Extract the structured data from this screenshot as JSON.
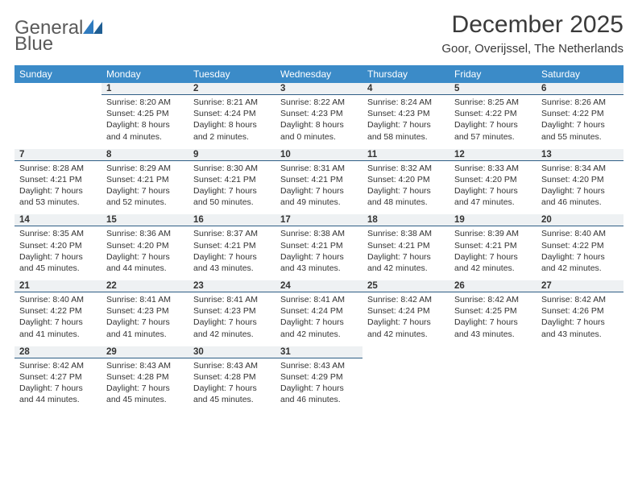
{
  "logo": {
    "text1": "General",
    "text2": "Blue"
  },
  "title": "December 2025",
  "location": "Goor, Overijssel, The Netherlands",
  "colors": {
    "header_bg": "#3b8bc8",
    "header_fg": "#ffffff",
    "daynum_bg": "#eef1f3",
    "daynum_border": "#2f5e86",
    "text": "#333333",
    "logo_gray": "#5a5a5a",
    "logo_blue": "#2f7bbf"
  },
  "weekdays": [
    "Sunday",
    "Monday",
    "Tuesday",
    "Wednesday",
    "Thursday",
    "Friday",
    "Saturday"
  ],
  "start_offset": 1,
  "days": [
    {
      "n": 1,
      "sunrise": "8:20 AM",
      "sunset": "4:25 PM",
      "daylight": "8 hours and 4 minutes."
    },
    {
      "n": 2,
      "sunrise": "8:21 AM",
      "sunset": "4:24 PM",
      "daylight": "8 hours and 2 minutes."
    },
    {
      "n": 3,
      "sunrise": "8:22 AM",
      "sunset": "4:23 PM",
      "daylight": "8 hours and 0 minutes."
    },
    {
      "n": 4,
      "sunrise": "8:24 AM",
      "sunset": "4:23 PM",
      "daylight": "7 hours and 58 minutes."
    },
    {
      "n": 5,
      "sunrise": "8:25 AM",
      "sunset": "4:22 PM",
      "daylight": "7 hours and 57 minutes."
    },
    {
      "n": 6,
      "sunrise": "8:26 AM",
      "sunset": "4:22 PM",
      "daylight": "7 hours and 55 minutes."
    },
    {
      "n": 7,
      "sunrise": "8:28 AM",
      "sunset": "4:21 PM",
      "daylight": "7 hours and 53 minutes."
    },
    {
      "n": 8,
      "sunrise": "8:29 AM",
      "sunset": "4:21 PM",
      "daylight": "7 hours and 52 minutes."
    },
    {
      "n": 9,
      "sunrise": "8:30 AM",
      "sunset": "4:21 PM",
      "daylight": "7 hours and 50 minutes."
    },
    {
      "n": 10,
      "sunrise": "8:31 AM",
      "sunset": "4:21 PM",
      "daylight": "7 hours and 49 minutes."
    },
    {
      "n": 11,
      "sunrise": "8:32 AM",
      "sunset": "4:20 PM",
      "daylight": "7 hours and 48 minutes."
    },
    {
      "n": 12,
      "sunrise": "8:33 AM",
      "sunset": "4:20 PM",
      "daylight": "7 hours and 47 minutes."
    },
    {
      "n": 13,
      "sunrise": "8:34 AM",
      "sunset": "4:20 PM",
      "daylight": "7 hours and 46 minutes."
    },
    {
      "n": 14,
      "sunrise": "8:35 AM",
      "sunset": "4:20 PM",
      "daylight": "7 hours and 45 minutes."
    },
    {
      "n": 15,
      "sunrise": "8:36 AM",
      "sunset": "4:20 PM",
      "daylight": "7 hours and 44 minutes."
    },
    {
      "n": 16,
      "sunrise": "8:37 AM",
      "sunset": "4:21 PM",
      "daylight": "7 hours and 43 minutes."
    },
    {
      "n": 17,
      "sunrise": "8:38 AM",
      "sunset": "4:21 PM",
      "daylight": "7 hours and 43 minutes."
    },
    {
      "n": 18,
      "sunrise": "8:38 AM",
      "sunset": "4:21 PM",
      "daylight": "7 hours and 42 minutes."
    },
    {
      "n": 19,
      "sunrise": "8:39 AM",
      "sunset": "4:21 PM",
      "daylight": "7 hours and 42 minutes."
    },
    {
      "n": 20,
      "sunrise": "8:40 AM",
      "sunset": "4:22 PM",
      "daylight": "7 hours and 42 minutes."
    },
    {
      "n": 21,
      "sunrise": "8:40 AM",
      "sunset": "4:22 PM",
      "daylight": "7 hours and 41 minutes."
    },
    {
      "n": 22,
      "sunrise": "8:41 AM",
      "sunset": "4:23 PM",
      "daylight": "7 hours and 41 minutes."
    },
    {
      "n": 23,
      "sunrise": "8:41 AM",
      "sunset": "4:23 PM",
      "daylight": "7 hours and 42 minutes."
    },
    {
      "n": 24,
      "sunrise": "8:41 AM",
      "sunset": "4:24 PM",
      "daylight": "7 hours and 42 minutes."
    },
    {
      "n": 25,
      "sunrise": "8:42 AM",
      "sunset": "4:24 PM",
      "daylight": "7 hours and 42 minutes."
    },
    {
      "n": 26,
      "sunrise": "8:42 AM",
      "sunset": "4:25 PM",
      "daylight": "7 hours and 43 minutes."
    },
    {
      "n": 27,
      "sunrise": "8:42 AM",
      "sunset": "4:26 PM",
      "daylight": "7 hours and 43 minutes."
    },
    {
      "n": 28,
      "sunrise": "8:42 AM",
      "sunset": "4:27 PM",
      "daylight": "7 hours and 44 minutes."
    },
    {
      "n": 29,
      "sunrise": "8:43 AM",
      "sunset": "4:28 PM",
      "daylight": "7 hours and 45 minutes."
    },
    {
      "n": 30,
      "sunrise": "8:43 AM",
      "sunset": "4:28 PM",
      "daylight": "7 hours and 45 minutes."
    },
    {
      "n": 31,
      "sunrise": "8:43 AM",
      "sunset": "4:29 PM",
      "daylight": "7 hours and 46 minutes."
    }
  ],
  "labels": {
    "sunrise": "Sunrise:",
    "sunset": "Sunset:",
    "daylight": "Daylight:"
  }
}
